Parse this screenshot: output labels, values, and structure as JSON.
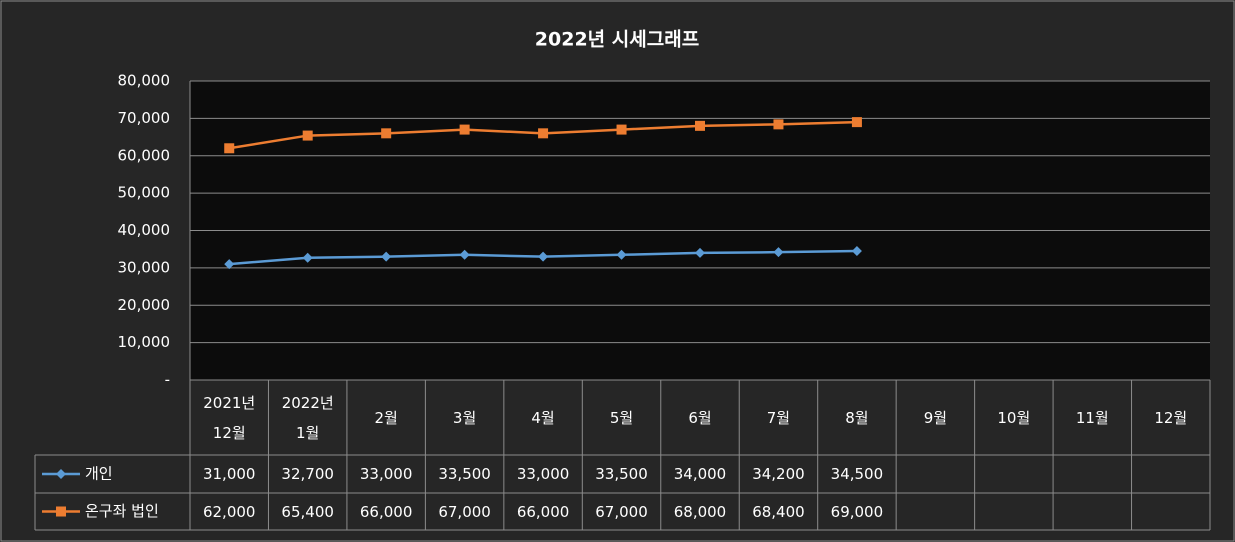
{
  "chart_data": {
    "type": "line",
    "title": "2022년 시세그래프",
    "categories": [
      "2021년 12월",
      "2022년 1월",
      "2월",
      "3월",
      "4월",
      "5월",
      "6월",
      "7월",
      "8월",
      "9월",
      "10월",
      "11월",
      "12월"
    ],
    "series": [
      {
        "name": "개인",
        "color": "#5b9bd5",
        "marker": "diamond",
        "values": [
          31000,
          32700,
          33000,
          33500,
          33000,
          33500,
          34000,
          34200,
          34500,
          null,
          null,
          null,
          null
        ],
        "value_labels": [
          "31,000",
          "32,700",
          "33,000",
          "33,500",
          "33,000",
          "33,500",
          "34,000",
          "34,200",
          "34,500",
          null,
          null,
          null,
          null
        ]
      },
      {
        "name": "온구좌 법인",
        "color": "#ed7d31",
        "marker": "square",
        "values": [
          62000,
          65400,
          66000,
          67000,
          66000,
          67000,
          68000,
          68400,
          69000,
          null,
          null,
          null,
          null
        ],
        "value_labels": [
          "62,000",
          "65,400",
          "66,000",
          "67,000",
          "66,000",
          "67,000",
          "68,000",
          "68,400",
          "69,000",
          null,
          null,
          null,
          null
        ]
      }
    ],
    "ylim": [
      0,
      80000
    ],
    "yticks": [
      {
        "value": 0,
        "label": "-"
      },
      {
        "value": 10000,
        "label": "10,000"
      },
      {
        "value": 20000,
        "label": "20,000"
      },
      {
        "value": 30000,
        "label": "30,000"
      },
      {
        "value": 40000,
        "label": "40,000"
      },
      {
        "value": 50000,
        "label": "50,000"
      },
      {
        "value": 60000,
        "label": "60,000"
      },
      {
        "value": 70000,
        "label": "70,000"
      },
      {
        "value": 80000,
        "label": "80,000"
      }
    ],
    "grid": true
  }
}
